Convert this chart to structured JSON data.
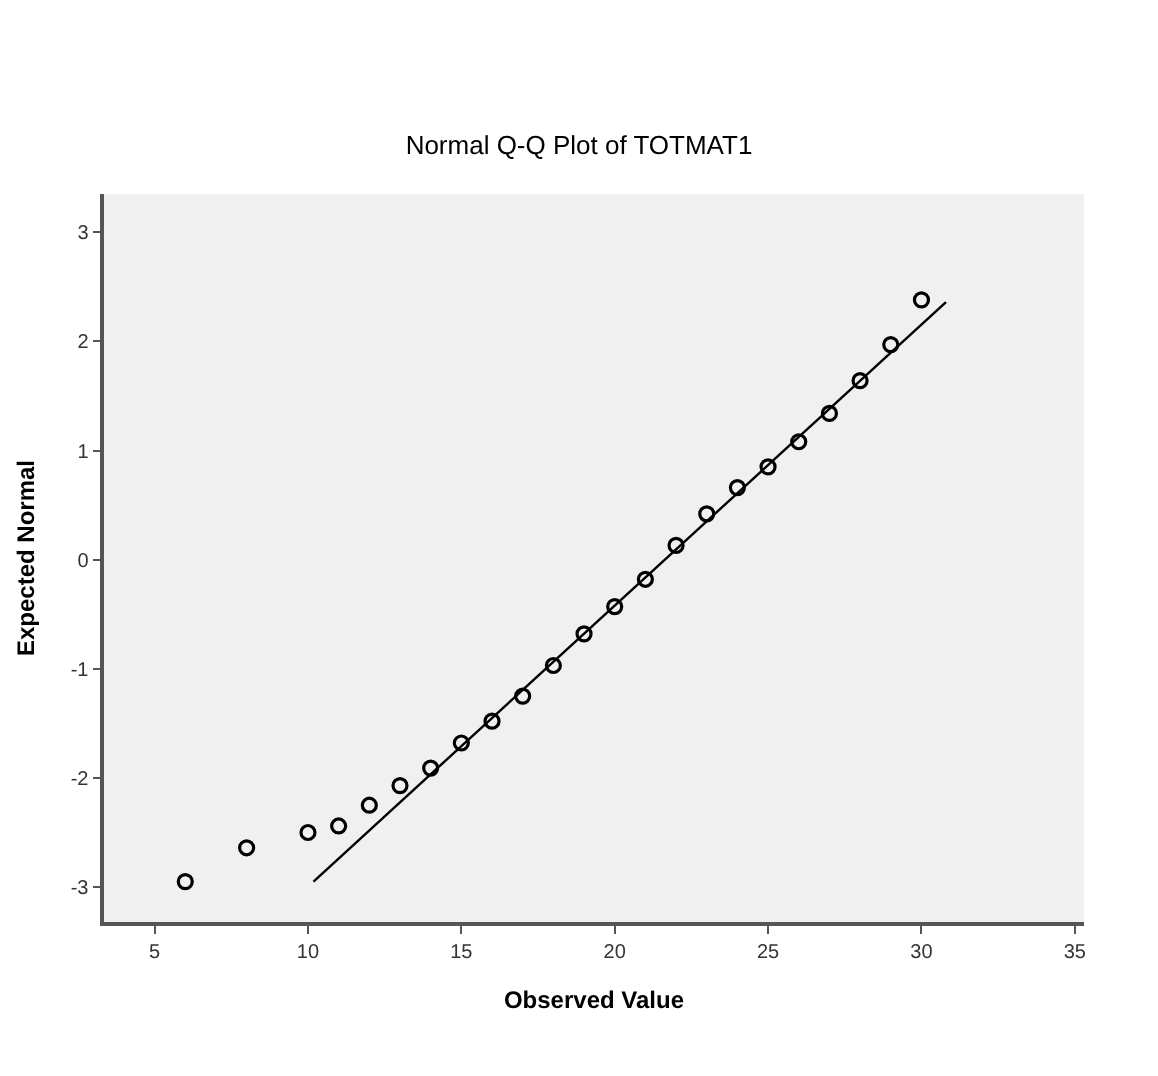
{
  "chart_data": {
    "type": "scatter",
    "title": "Normal Q-Q Plot of TOTMAT1",
    "xlabel": "Observed Value",
    "ylabel": "Expected Normal",
    "xlim": [
      3.35,
      35.3
    ],
    "xticks": [
      5,
      10,
      15,
      20,
      25,
      30,
      35
    ],
    "ylim": [
      -3.32,
      3.35
    ],
    "yticks": [
      -3,
      -2,
      -1,
      0,
      1,
      2,
      3
    ],
    "grid": false,
    "marker": "circle",
    "series": [
      {
        "color": "#000000",
        "x": [
          6,
          8,
          10,
          11,
          12,
          13,
          14,
          15,
          16,
          17,
          18,
          19,
          20,
          21,
          22,
          23,
          24,
          25,
          26,
          27,
          28,
          29,
          30
        ],
        "values": [
          -2.95,
          -2.64,
          -2.5,
          -2.44,
          -2.25,
          -2.07,
          -1.91,
          -1.68,
          -1.48,
          -1.25,
          -0.97,
          -0.68,
          -0.43,
          -0.18,
          0.13,
          0.42,
          0.66,
          0.85,
          1.08,
          1.34,
          1.64,
          1.97,
          2.38
        ]
      },
      {
        "type": "line",
        "marker": "none",
        "color": "#000000",
        "line_style": "solid",
        "x": [
          10.18,
          30.8
        ],
        "values": [
          -2.95,
          2.36
        ]
      }
    ]
  }
}
